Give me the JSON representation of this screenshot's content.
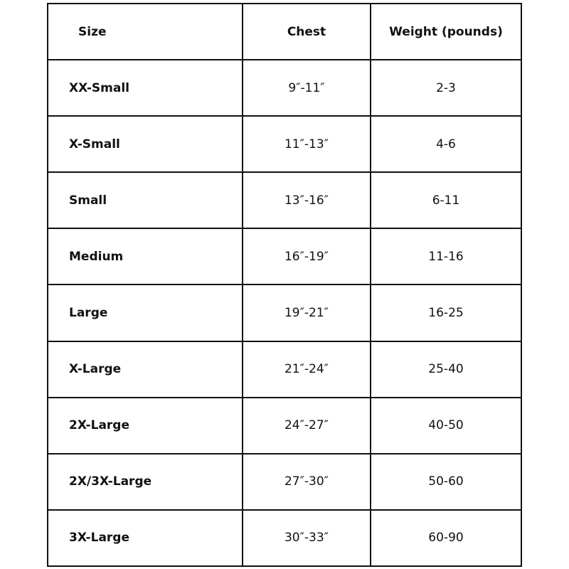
{
  "table": {
    "headers": [
      "Size",
      "Chest",
      "Weight (pounds)"
    ],
    "rows": [
      [
        "XX-Small",
        "9″-11″",
        "2-3"
      ],
      [
        "X-Small",
        "11″-13″",
        "4-6"
      ],
      [
        "Small",
        "13″-16″",
        "6-11"
      ],
      [
        "Medium",
        "16″-19″",
        "11-16"
      ],
      [
        "Large",
        "19″-21″",
        "16-25"
      ],
      [
        "X-Large",
        "21″-24″",
        "25-40"
      ],
      [
        "2X-Large",
        "24″-27″",
        "40-50"
      ],
      [
        "2X/3X-Large",
        "27″-30″",
        "50-60"
      ],
      [
        "3X-Large",
        "30″-33″",
        "60-90"
      ]
    ]
  }
}
